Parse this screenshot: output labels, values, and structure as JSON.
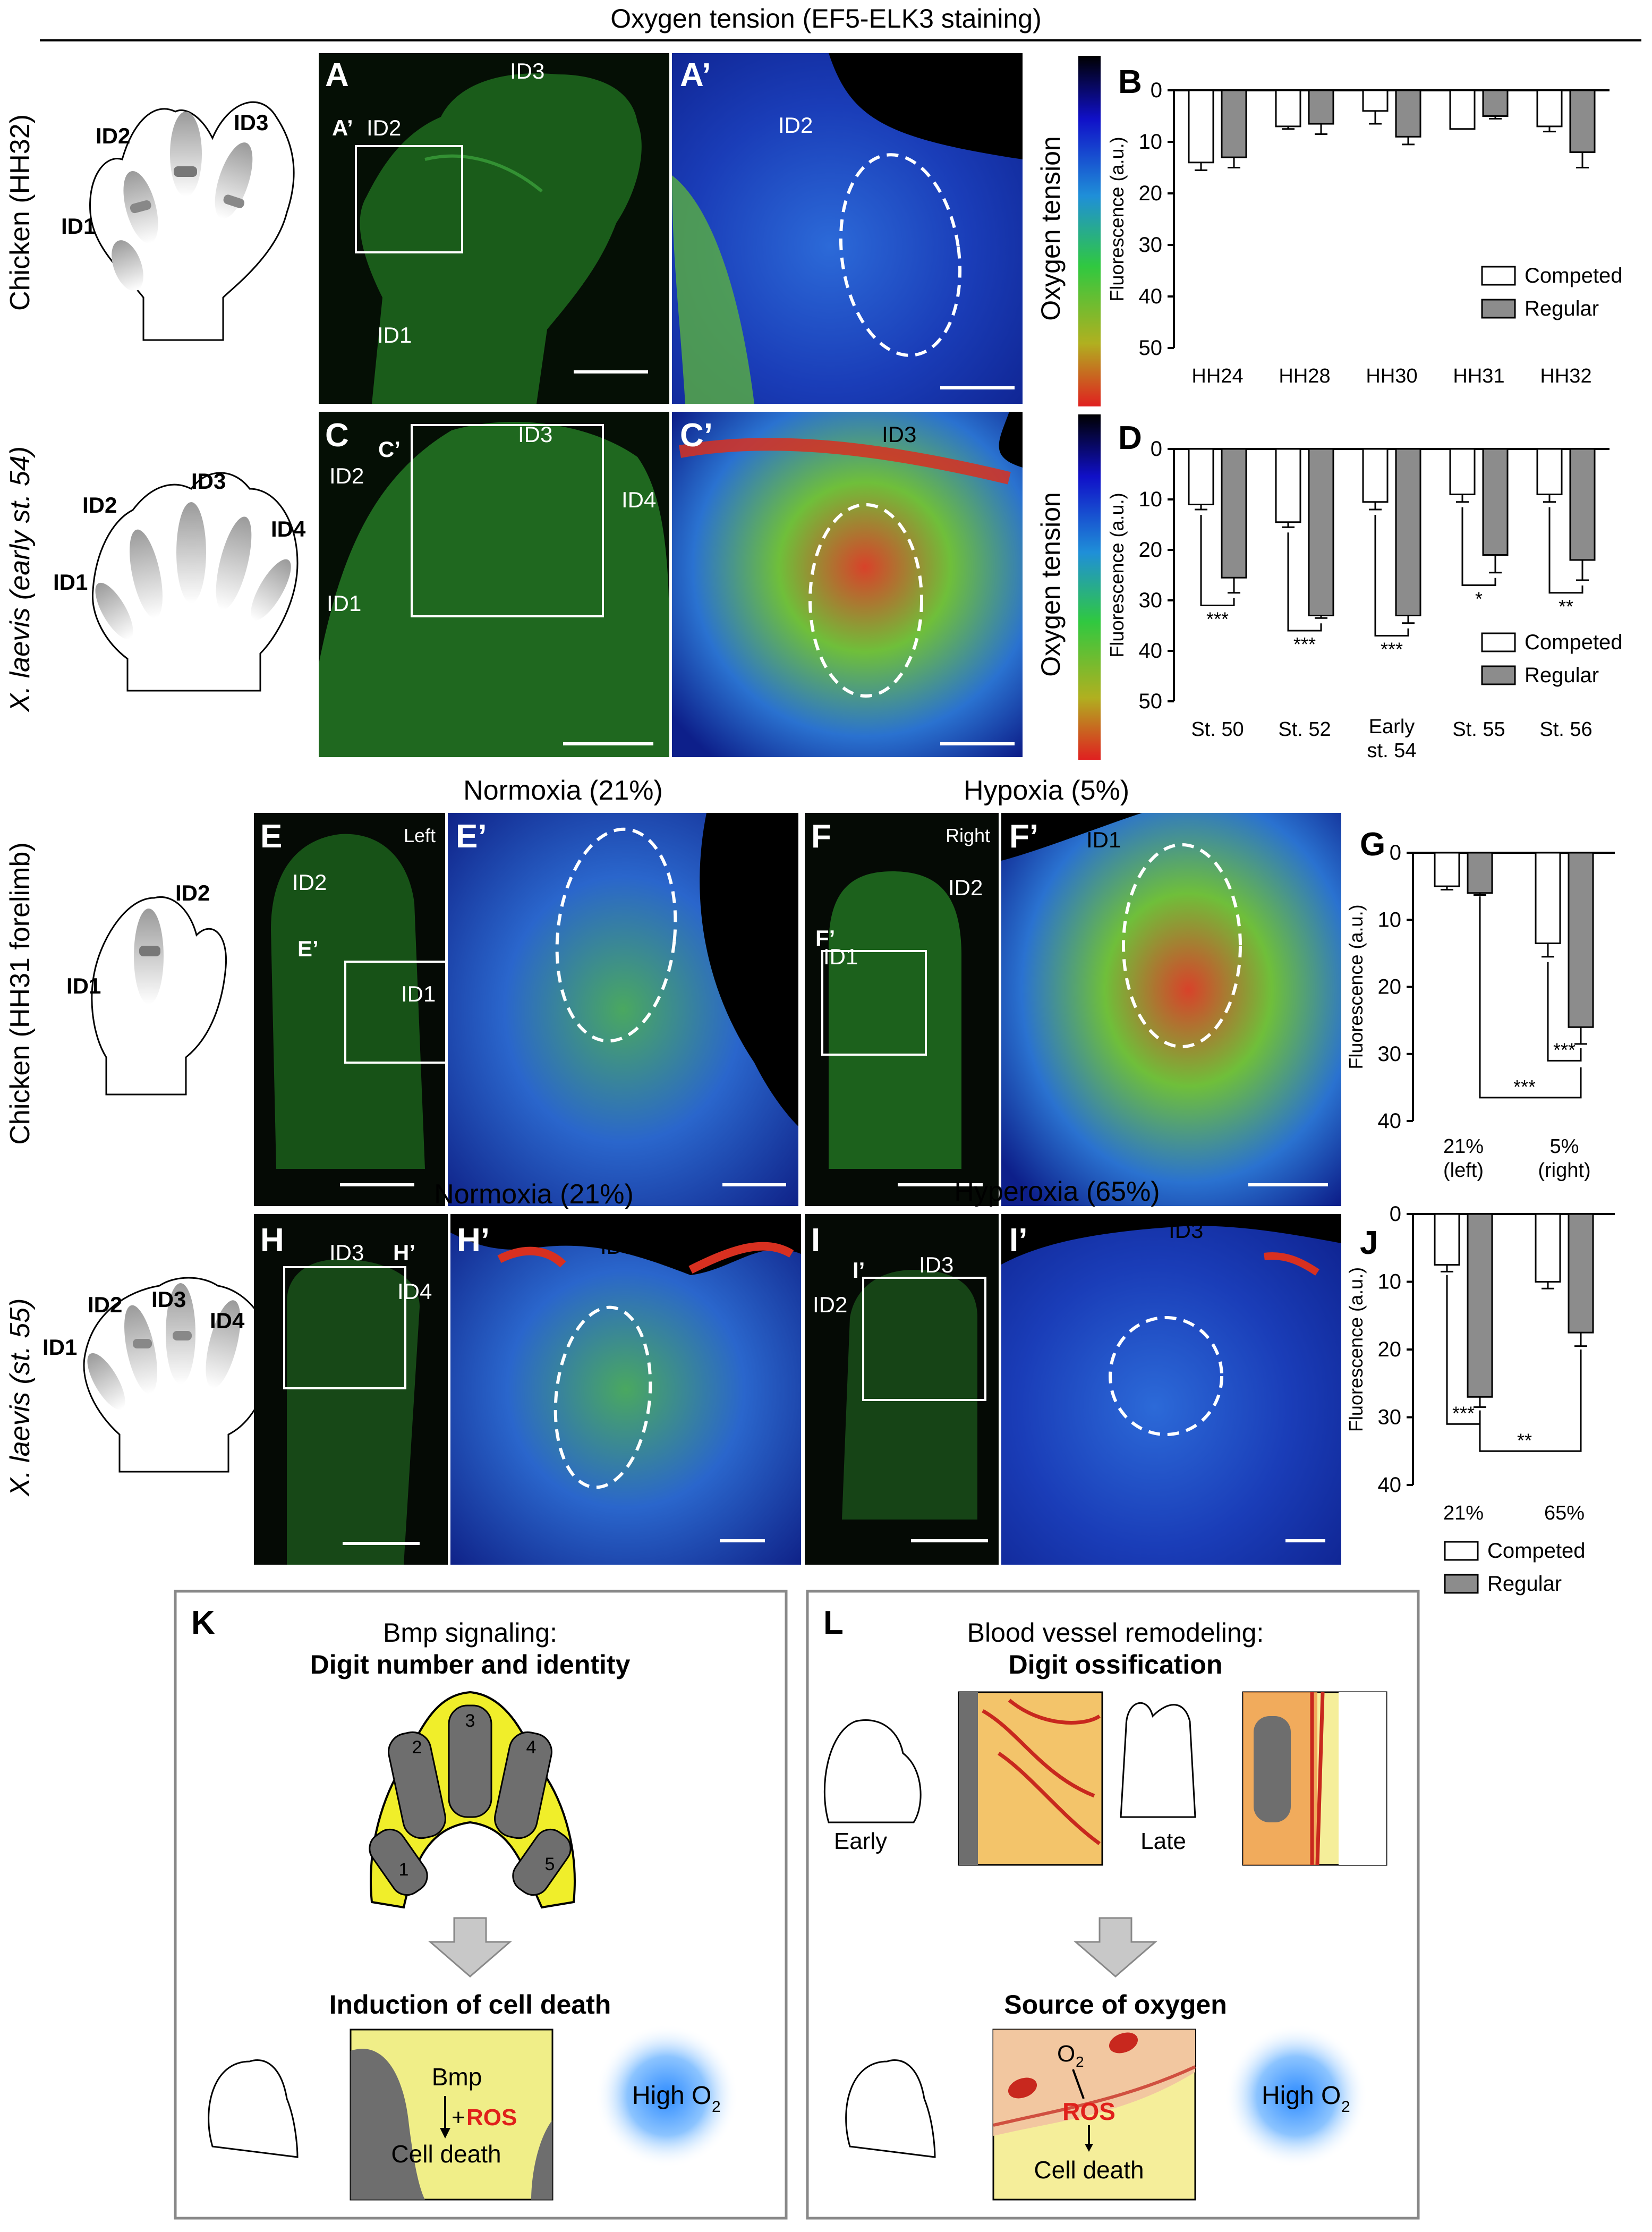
{
  "figure_title": "Oxygen tension (EF5-ELK3 staining)",
  "row_labels": {
    "A": "Chicken (HH32)",
    "C": "X. laevis (early st. 54)",
    "E": "Chicken (HH31 forelimb)",
    "H": "X. laevis (st. 55)"
  },
  "panel_letters": {
    "A": "A",
    "A_prime": "A’",
    "B": "B",
    "C": "C",
    "C_prime": "C’",
    "D": "D",
    "E": "E",
    "E_prime": "E’",
    "F": "F",
    "F_prime": "F’",
    "G": "G",
    "H": "H",
    "H_prime": "H’",
    "I": "I",
    "I_prime": "I’",
    "J": "J",
    "K": "K",
    "L": "L"
  },
  "colorbar_label": "Oxygen tension",
  "condition_titles": {
    "normoxia": "Normoxia (21%)",
    "hypoxia": "Hypoxia (5%)",
    "hyperoxia": "Hyperoxia (65%)"
  },
  "image_tags": {
    "left": "Left",
    "right": "Right"
  },
  "digit_labels": {
    "id1": "ID1",
    "id2": "ID2",
    "id3": "ID3",
    "id4": "ID4"
  },
  "legend": {
    "competed": "Competed",
    "regular": "Regular"
  },
  "significance": {
    "three": "***",
    "two": "**",
    "one": "*"
  },
  "colors": {
    "competed": "#ffffff",
    "regular": "#8c8c8c",
    "ros": "#e0201b",
    "tissue_yellow": "#f3f07a",
    "bone_gray": "#6e6e6e"
  },
  "chart_data": [
    {
      "panel": "B",
      "type": "bar",
      "orientation": "inverted-y",
      "ylabel": "Fluorescence (a.u.)",
      "ylim": [
        0,
        50
      ],
      "yticks": [
        "0",
        "10",
        "20",
        "30",
        "40",
        "50"
      ],
      "categories": [
        "HH24",
        "HH28",
        "HH30",
        "HH31",
        "HH32"
      ],
      "series": [
        {
          "name": "Competed",
          "values": [
            14,
            7,
            4,
            7.5,
            7
          ],
          "err": [
            1.5,
            0.5,
            2.5,
            0,
            1
          ]
        },
        {
          "name": "Regular",
          "values": [
            13,
            6.5,
            9,
            5,
            12
          ],
          "err": [
            2,
            2,
            1.5,
            0.5,
            3
          ]
        }
      ],
      "legend_position": "bottom-right"
    },
    {
      "panel": "D",
      "type": "bar",
      "orientation": "inverted-y",
      "ylabel": "Fluorescence (a.u.)",
      "ylim": [
        0,
        50
      ],
      "yticks": [
        "0",
        "10",
        "20",
        "30",
        "40",
        "50"
      ],
      "categories": [
        "St. 50",
        "St. 52",
        "Early st. 54",
        "St. 55",
        "St. 56"
      ],
      "series": [
        {
          "name": "Competed",
          "values": [
            11,
            14.5,
            10.5,
            9,
            9
          ],
          "err": [
            1,
            1,
            1.5,
            1.5,
            1.5
          ]
        },
        {
          "name": "Regular",
          "values": [
            25.5,
            33,
            33,
            21,
            22
          ],
          "err": [
            3,
            0.5,
            1.5,
            3.5,
            4
          ]
        }
      ],
      "significance": [
        "***",
        "***",
        "***",
        "*",
        "**"
      ],
      "legend_position": "bottom-right"
    },
    {
      "panel": "G",
      "type": "bar",
      "orientation": "inverted-y",
      "ylabel": "Fluorescence (a.u.)",
      "ylim": [
        0,
        40
      ],
      "yticks": [
        "0",
        "10",
        "20",
        "30",
        "40"
      ],
      "categories": [
        "21% (left)",
        "5% (right)"
      ],
      "series": [
        {
          "name": "Competed",
          "values": [
            5,
            13.5
          ],
          "err": [
            0.5,
            2
          ]
        },
        {
          "name": "Regular",
          "values": [
            6,
            26
          ],
          "err": [
            0.3,
            2.5
          ]
        }
      ],
      "significance": [
        "***",
        "***"
      ]
    },
    {
      "panel": "J",
      "type": "bar",
      "orientation": "inverted-y",
      "ylabel": "Fluorescence (a.u.)",
      "ylim": [
        0,
        40
      ],
      "yticks": [
        "0",
        "10",
        "20",
        "30",
        "40"
      ],
      "categories": [
        "21%",
        "65%"
      ],
      "series": [
        {
          "name": "Competed",
          "values": [
            7.5,
            10
          ],
          "err": [
            1,
            1
          ]
        },
        {
          "name": "Regular",
          "values": [
            27,
            17.5
          ],
          "err": [
            1.5,
            2
          ]
        }
      ],
      "significance": [
        "***",
        "**"
      ],
      "legend_position": "bottom"
    }
  ],
  "panel_K": {
    "title": "Bmp signaling:",
    "subtitle": "Digit number and identity",
    "digit_numbers": [
      "1",
      "2",
      "3",
      "4",
      "5"
    ],
    "heading2": "Induction of cell death",
    "bmp": "Bmp",
    "ros_prefix": "+",
    "ros": "ROS",
    "cell_death": "Cell death",
    "high": "High O",
    "high_sub": "2"
  },
  "panel_L": {
    "title": "Blood vessel remodeling:",
    "subtitle": "Digit ossification",
    "early": "Early",
    "late": "Late",
    "heading2": "Source of oxygen",
    "o2": "O",
    "o2_sub": "2",
    "ros": "ROS",
    "cell_death": "Cell death",
    "high": "High O",
    "high_sub": "2"
  }
}
